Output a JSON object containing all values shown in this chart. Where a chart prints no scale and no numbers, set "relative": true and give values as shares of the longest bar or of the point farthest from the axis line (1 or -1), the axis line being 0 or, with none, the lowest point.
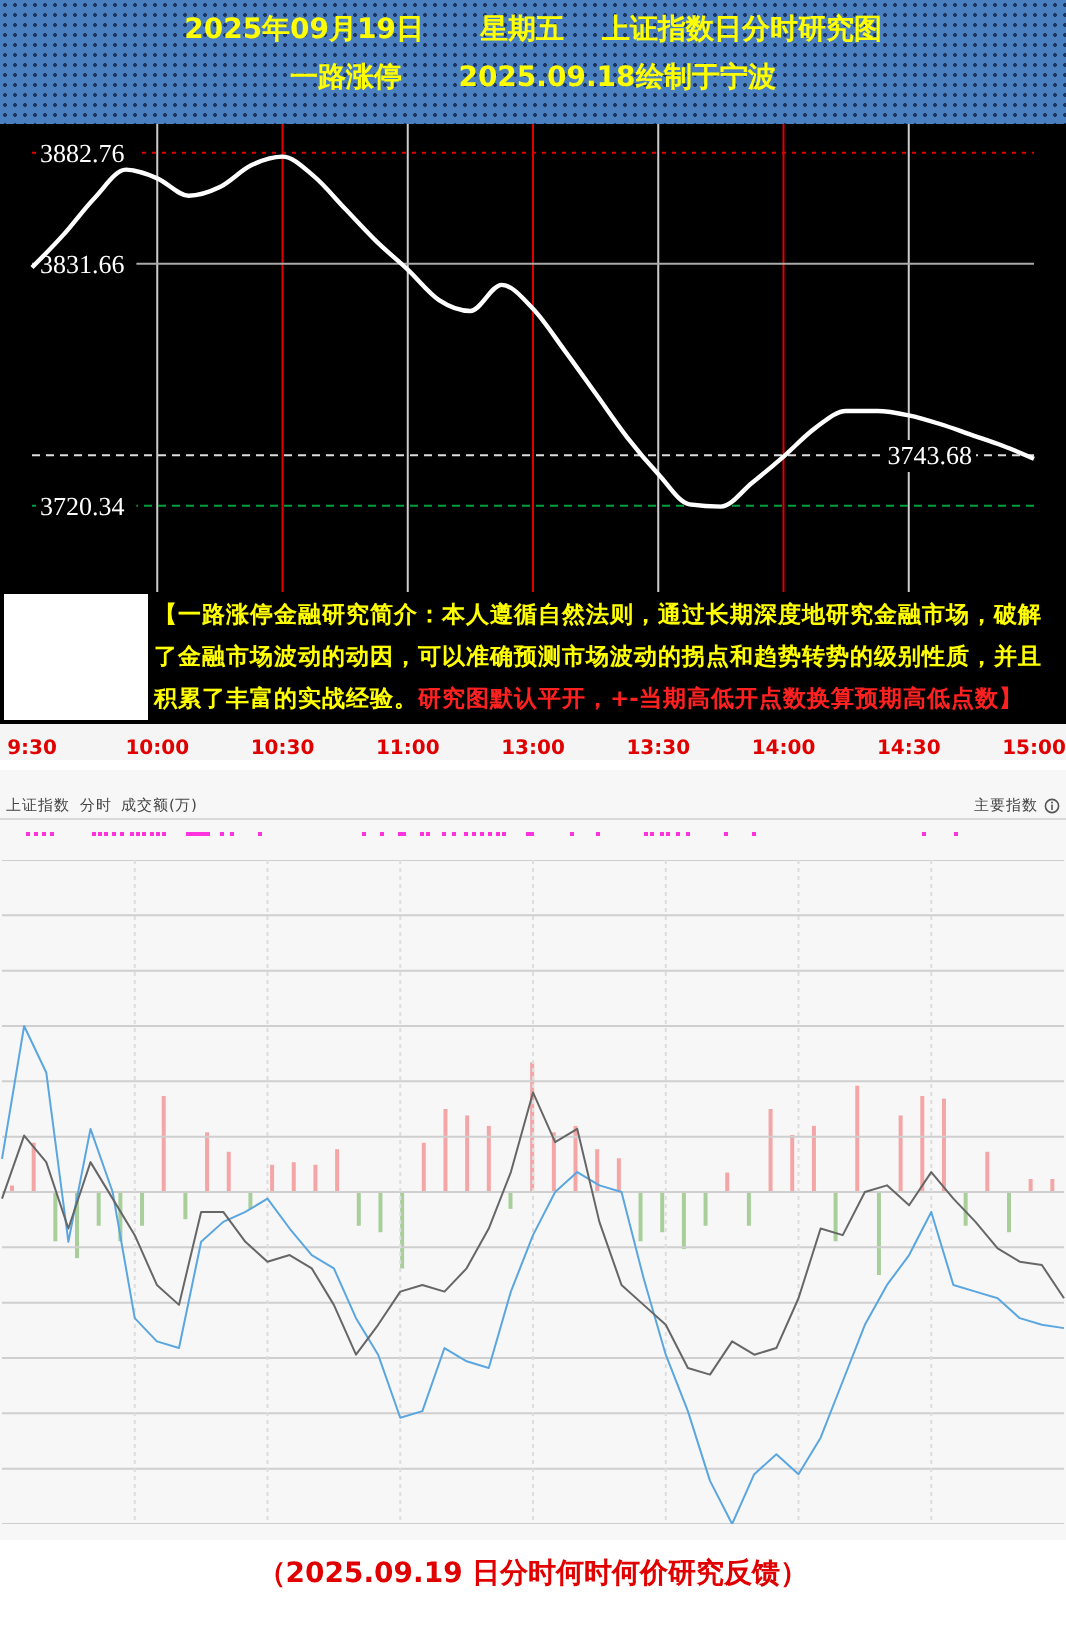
{
  "chart_data": [
    {
      "type": "line",
      "title": "2025年09月19日　　星期五　 上证指数日分时研究图",
      "subtitle": "一路涨停　　2025.09.18绘制于宁波",
      "color": "#ffffff",
      "categories": [
        "9:30",
        null,
        null,
        null,
        "10:00",
        null,
        null,
        null,
        "10:30",
        null,
        null,
        null,
        "11:00",
        null,
        null,
        null,
        "13:00",
        null,
        null,
        null,
        "13:30",
        null,
        null,
        null,
        "14:00",
        null,
        null,
        null,
        "14:30",
        null,
        null,
        null,
        "15:00"
      ],
      "values": [
        3830,
        3845,
        3862,
        3875,
        3871,
        3863,
        3867,
        3877,
        3881,
        3872,
        3857,
        3842,
        3829,
        3815,
        3810,
        3822,
        3811,
        3792,
        3772,
        3752,
        3735,
        3721,
        3720,
        3731,
        3743,
        3756,
        3764,
        3764,
        3762,
        3758,
        3753,
        3748,
        3742
      ],
      "ylim": [
        3620,
        3896
      ],
      "tick_labels": "x",
      "grid": "x",
      "ref_lines": [
        {
          "axis": "y",
          "value": 3882.76,
          "label": "3882.76",
          "color": "#e00000",
          "line_style": "dotted"
        },
        {
          "axis": "y",
          "value": 3831.66,
          "label": "3831.66",
          "color": "#aaaaaa",
          "line_style": "solid"
        },
        {
          "axis": "y",
          "value": 3743.68,
          "color": "#dddddd",
          "line_style": "dashed"
        },
        {
          "axis": "y",
          "value": 3720.34,
          "label": "3720.34",
          "color": "#00a040",
          "line_style": "dashed"
        }
      ],
      "annotations": [
        "【一路涨停金融研究简介：本人遵循自然法则，通过长期深度地研究金融市场，破解了金融市场波动的动因，可以准确预测市场波动的拐点和趋势转势的级别性质，并且积累了丰富的实战经验。",
        "研究图默认平开，+-当期高低开点数换算预期高低点数】",
        {
          "text": "3743.68",
          "y": 3743.68
        }
      ]
    },
    {
      "type": "line",
      "relative": true,
      "grid": true,
      "tick_labels": false,
      "categories": [
        null,
        null,
        null,
        null,
        null,
        null,
        null,
        null,
        null,
        null,
        null,
        null,
        null,
        null,
        null,
        null,
        null,
        null,
        null,
        null,
        null,
        null,
        null,
        null,
        null,
        null,
        null,
        null,
        null,
        null,
        null,
        null,
        null,
        null,
        null,
        null,
        null,
        null,
        null,
        null,
        null,
        null,
        null,
        null,
        null,
        null,
        null,
        null,
        null
      ],
      "series": [
        {
          "color": "#5aa6e0",
          "values": [
            0.1,
            0.5,
            0.36,
            -0.15,
            0.19,
            0,
            -0.38,
            -0.45,
            -0.47,
            -0.15,
            -0.09,
            -0.06,
            -0.02,
            -0.11,
            -0.19,
            -0.23,
            -0.38,
            -0.49,
            -0.68,
            -0.66,
            -0.47,
            -0.51,
            -0.53,
            -0.3,
            -0.13,
            0,
            0.06,
            0.02,
            0,
            -0.26,
            -0.49,
            -0.66,
            -0.87,
            -1,
            -0.85,
            -0.79,
            -0.85,
            -0.74,
            -0.57,
            -0.4,
            -0.28,
            -0.19,
            -0.06,
            -0.28,
            -0.3,
            -0.32,
            -0.38,
            -0.4,
            -0.41
          ]
        },
        {
          "color": "#666666",
          "values": [
            -0.02,
            0.17,
            0.09,
            -0.11,
            0.09,
            -0.02,
            -0.13,
            -0.28,
            -0.34,
            -0.06,
            -0.06,
            -0.15,
            -0.21,
            -0.19,
            -0.23,
            -0.34,
            -0.49,
            -0.4,
            -0.3,
            -0.28,
            -0.3,
            -0.23,
            -0.11,
            0.06,
            0.3,
            0.15,
            0.19,
            -0.09,
            -0.28,
            -0.34,
            -0.4,
            -0.53,
            -0.55,
            -0.45,
            -0.49,
            -0.47,
            -0.32,
            -0.11,
            -0.13,
            0,
            0.02,
            -0.04,
            0.06,
            -0.02,
            -0.09,
            -0.17,
            -0.21,
            -0.22,
            -0.32
          ]
        }
      ],
      "annotations": [
        "上证指数  分时  成交额(万)",
        "主要指数",
        "（2025.09.19 日分时何时何价研究反馈）"
      ]
    },
    {
      "type": "bar",
      "relative": true,
      "tick_labels": false,
      "categories": [
        null,
        null,
        null,
        null,
        null,
        null,
        null,
        null,
        null,
        null,
        null,
        null,
        null,
        null,
        null,
        null,
        null,
        null,
        null,
        null,
        null,
        null,
        null,
        null,
        null,
        null,
        null,
        null,
        null,
        null,
        null,
        null,
        null,
        null,
        null,
        null,
        null,
        null,
        null,
        null,
        null,
        null,
        null,
        null,
        null,
        null,
        null,
        null,
        null
      ],
      "values": [
        0.05,
        0.38,
        -0.38,
        -0.51,
        -0.26,
        -0.38,
        -0.26,
        0.74,
        -0.21,
        0.46,
        0.31,
        -0.13,
        0.21,
        0.23,
        0.21,
        0.33,
        -0.26,
        -0.31,
        -0.59,
        0.38,
        0.64,
        0.59,
        0.51,
        -0.13,
        1,
        0.46,
        0.51,
        0.33,
        0.26,
        -0.38,
        -0.31,
        -0.44,
        -0.26,
        0.15,
        -0.26,
        0.64,
        0.44,
        0.51,
        -0.38,
        0.82,
        -0.64,
        0.59,
        0.74,
        0.72,
        -0.26,
        0.31,
        -0.31,
        0.1,
        0.1
      ],
      "colors": [
        "#f4a6a6",
        "#f4a6a6",
        "#a8cf9a",
        "#a8cf9a",
        "#a8cf9a",
        "#a8cf9a",
        "#a8cf9a",
        "#f4a6a6",
        "#a8cf9a",
        "#f4a6a6",
        "#f4a6a6",
        "#a8cf9a",
        "#f4a6a6",
        "#f4a6a6",
        "#f4a6a6",
        "#f4a6a6",
        "#a8cf9a",
        "#a8cf9a",
        "#a8cf9a",
        "#f4a6a6",
        "#f4a6a6",
        "#f4a6a6",
        "#f4a6a6",
        "#a8cf9a",
        "#f4a6a6",
        "#f4a6a6",
        "#f4a6a6",
        "#f4a6a6",
        "#f4a6a6",
        "#a8cf9a",
        "#a8cf9a",
        "#a8cf9a",
        "#a8cf9a",
        "#f4a6a6",
        "#a8cf9a",
        "#f4a6a6",
        "#f4a6a6",
        "#f4a6a6",
        "#a8cf9a",
        "#f4a6a6",
        "#a8cf9a",
        "#f4a6a6",
        "#f4a6a6",
        "#f4a6a6",
        "#a8cf9a",
        "#f4a6a6",
        "#a8cf9a",
        "#f4a6a6",
        "#f4a6a6"
      ]
    }
  ]
}
